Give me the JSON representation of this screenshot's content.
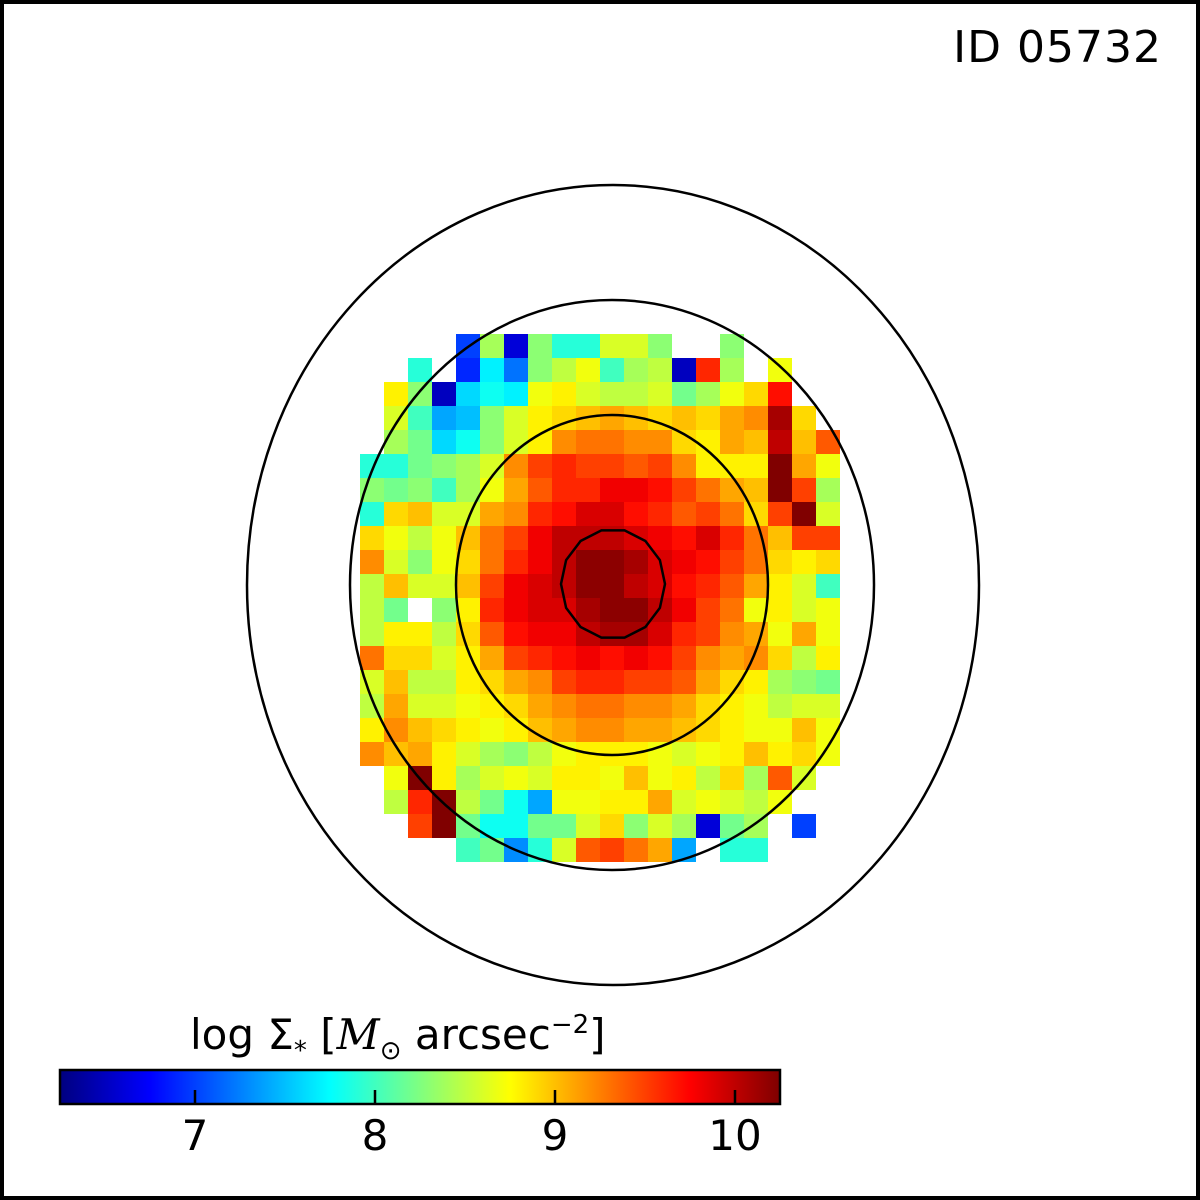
{
  "figure": {
    "id_label": "ID 05732"
  },
  "colorbar": {
    "title_prefix": "log Σ",
    "title_sub": "*",
    "title_unit_symbol": "M",
    "title_unit_sub": "⊙",
    "title_unit_rest": "arcsec",
    "title_unit_exp": "−2",
    "colormap": "jet",
    "range": [
      6.25,
      10.25
    ],
    "ticks": [
      7,
      8,
      9,
      10
    ],
    "tick_labels": [
      "7",
      "8",
      "9",
      "10"
    ]
  },
  "chart_data": {
    "type": "heatmap",
    "title": "ID 05732",
    "colorbar_label": "log Σ* [M⊙ arcsec−2]",
    "colormap": "jet",
    "vmin": 6.25,
    "vmax": 10.25,
    "grid_on": false,
    "note_missing": "null = no data (white)",
    "rows": [
      [
        null,
        null,
        null,
        null,
        7.0,
        8.4,
        6.6,
        8.3,
        7.9,
        7.9,
        8.6,
        8.6,
        8.3,
        null,
        null,
        8.3,
        null,
        null,
        null,
        null
      ],
      [
        null,
        null,
        7.9,
        null,
        6.9,
        7.7,
        7.2,
        8.3,
        8.5,
        8.7,
        8.0,
        8.4,
        8.5,
        6.5,
        9.6,
        8.4,
        null,
        8.7,
        null,
        null
      ],
      [
        null,
        8.8,
        8.3,
        6.5,
        7.6,
        7.8,
        7.7,
        8.7,
        8.8,
        8.6,
        8.5,
        8.5,
        8.6,
        8.2,
        8.4,
        8.7,
        8.9,
        9.7,
        null,
        null
      ],
      [
        null,
        8.6,
        8.0,
        7.4,
        7.5,
        8.3,
        8.6,
        8.8,
        8.9,
        9.0,
        9.1,
        9.0,
        8.9,
        9.0,
        8.9,
        9.1,
        9.2,
        10.1,
        8.9,
        null
      ],
      [
        null,
        8.4,
        8.2,
        7.6,
        7.8,
        8.3,
        8.6,
        8.8,
        9.2,
        9.3,
        9.3,
        9.2,
        9.2,
        8.9,
        8.8,
        9.1,
        9.0,
        10.0,
        9.0,
        9.4
      ],
      [
        7.9,
        7.9,
        8.2,
        8.3,
        8.4,
        8.6,
        9.2,
        9.5,
        9.6,
        9.5,
        9.5,
        9.4,
        9.5,
        9.2,
        8.8,
        8.8,
        8.8,
        10.4,
        9.1,
        8.7
      ],
      [
        8.3,
        8.2,
        8.3,
        8.0,
        8.4,
        8.7,
        9.1,
        9.4,
        9.6,
        9.6,
        9.8,
        9.8,
        9.7,
        9.5,
        9.3,
        9.1,
        9.0,
        10.3,
        9.5,
        8.4
      ],
      [
        7.9,
        8.9,
        9.0,
        8.6,
        8.6,
        9.1,
        9.2,
        9.6,
        9.7,
        9.9,
        9.9,
        9.7,
        9.6,
        9.4,
        9.5,
        9.3,
        8.9,
        9.5,
        10.4,
        8.6
      ],
      [
        8.9,
        8.7,
        8.5,
        8.7,
        9.0,
        9.3,
        9.5,
        9.8,
        10.0,
        10.0,
        10.0,
        9.9,
        9.8,
        9.7,
        9.9,
        9.6,
        9.3,
        9.0,
        9.5,
        9.5
      ],
      [
        9.2,
        8.6,
        8.3,
        8.7,
        8.9,
        9.3,
        9.6,
        9.8,
        10.0,
        10.2,
        10.2,
        10.1,
        9.9,
        9.8,
        9.7,
        9.5,
        9.3,
        8.9,
        8.8,
        8.9
      ],
      [
        8.5,
        9.0,
        8.6,
        8.6,
        9.0,
        9.5,
        9.8,
        9.9,
        10.0,
        10.2,
        10.2,
        10.0,
        9.9,
        9.7,
        9.6,
        9.4,
        9.1,
        8.8,
        8.6,
        8.0
      ],
      [
        8.5,
        8.2,
        null,
        8.3,
        8.8,
        9.6,
        9.8,
        9.9,
        9.9,
        10.1,
        10.2,
        10.2,
        10.0,
        9.8,
        9.5,
        9.3,
        8.7,
        8.8,
        8.6,
        8.7
      ],
      [
        8.5,
        8.8,
        8.8,
        8.5,
        8.9,
        9.4,
        9.7,
        9.8,
        9.8,
        10.0,
        10.1,
        10.1,
        9.9,
        9.6,
        9.5,
        9.2,
        9.1,
        8.7,
        9.1,
        8.7
      ],
      [
        9.3,
        8.9,
        8.9,
        8.6,
        8.8,
        9.1,
        9.5,
        9.6,
        9.7,
        9.8,
        9.7,
        9.8,
        9.7,
        9.5,
        9.2,
        9.1,
        9.2,
        8.9,
        8.5,
        8.8
      ],
      [
        8.6,
        9.0,
        8.5,
        8.5,
        8.8,
        8.9,
        9.1,
        9.2,
        9.5,
        9.6,
        9.6,
        9.5,
        9.5,
        9.4,
        9.1,
        8.9,
        8.8,
        8.4,
        8.3,
        8.2
      ],
      [
        8.5,
        9.1,
        8.6,
        8.6,
        8.7,
        8.8,
        8.9,
        9.1,
        9.2,
        9.3,
        9.3,
        9.2,
        9.2,
        9.1,
        8.9,
        8.8,
        8.7,
        8.5,
        8.6,
        8.6
      ],
      [
        8.8,
        9.2,
        9.0,
        8.9,
        8.8,
        8.7,
        8.8,
        9.0,
        9.1,
        9.2,
        9.2,
        9.1,
        9.1,
        9.0,
        8.9,
        8.8,
        8.7,
        8.7,
        9.0,
        8.7
      ],
      [
        9.2,
        9.0,
        9.1,
        8.8,
        8.6,
        8.4,
        8.3,
        8.5,
        8.7,
        8.8,
        8.8,
        8.8,
        8.7,
        8.6,
        8.7,
        8.8,
        9.0,
        8.8,
        8.9,
        8.7
      ],
      [
        null,
        8.7,
        10.3,
        8.8,
        8.4,
        8.6,
        8.7,
        8.6,
        8.8,
        8.8,
        8.7,
        9.0,
        8.7,
        8.8,
        8.5,
        8.9,
        8.4,
        9.4,
        8.6,
        null
      ],
      [
        null,
        8.5,
        9.6,
        10.3,
        8.5,
        8.2,
        7.8,
        7.4,
        8.7,
        8.7,
        8.8,
        8.8,
        9.1,
        8.6,
        8.7,
        8.6,
        8.5,
        8.7,
        null,
        null
      ],
      [
        null,
        null,
        9.5,
        10.3,
        8.2,
        7.8,
        7.8,
        8.2,
        8.2,
        8.6,
        8.9,
        8.3,
        8.6,
        8.4,
        6.6,
        8.2,
        8.4,
        null,
        7.0,
        null
      ],
      [
        null,
        null,
        null,
        null,
        8.0,
        8.2,
        7.3,
        7.9,
        8.6,
        9.4,
        9.5,
        9.3,
        9.1,
        7.4,
        null,
        7.9,
        7.9,
        null,
        null,
        null
      ]
    ],
    "contours": [
      {
        "label": "r1",
        "kind": "inner"
      },
      {
        "label": "r2",
        "kind": "middle"
      },
      {
        "label": "r3",
        "kind": "outer"
      },
      {
        "label": "r4",
        "kind": "outermost"
      }
    ]
  }
}
